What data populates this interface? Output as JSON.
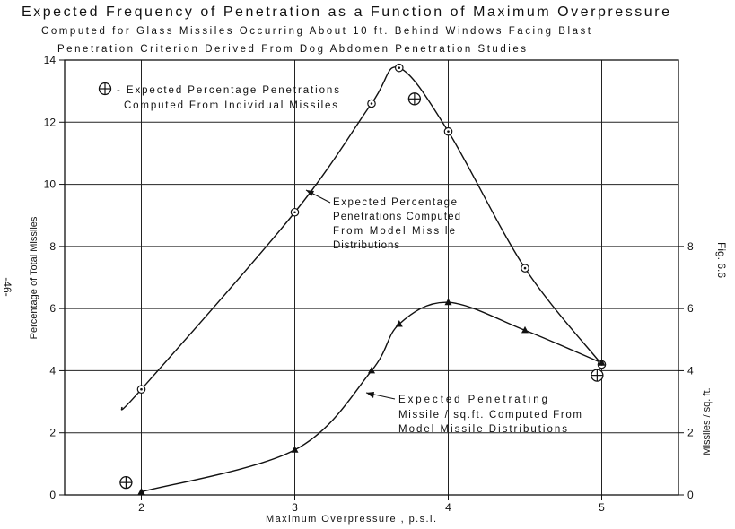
{
  "chart_data": {
    "type": "line",
    "title": "Expected Frequency of Penetration as a Function of Maximum Overpressure",
    "subtitle_lines": [
      "Computed for Glass Missiles Occurring About 10 ft. Behind Windows Facing Blast",
      "Penetration Criterion Derived From Dog Abdomen Penetration Studies"
    ],
    "xlabel": "Maximum Overpressure , p.s.i.",
    "ylabel": "Percentage of Total Missiles",
    "ylabel_right": "Missiles / sq. ft.",
    "x_ticks": [
      "2",
      "3",
      "4",
      "5"
    ],
    "y_ticks": [
      "0",
      "2",
      "4",
      "6",
      "8",
      "10",
      "12",
      "14"
    ],
    "y_right_ticks": [
      "0",
      "2",
      "4",
      "6",
      "8"
    ],
    "xlim": [
      1.5,
      5.5
    ],
    "ylim": [
      0,
      14
    ],
    "page_number": "-46-",
    "fig_label": "Fig. 6.6",
    "legend_text_1": "- Expected Percentage Penetrations",
    "legend_text_2": "Computed From Individual Missiles",
    "annotation_a_1": "Expected Percentage",
    "annotation_a_2": "Penetrations Computed",
    "annotation_a_3": "From Model Missile",
    "annotation_a_4": "Distributions",
    "annotation_b_1": "Expected Penetrating",
    "annotation_b_2": "Missile / sq.ft. Computed From",
    "annotation_b_3": "Model Missile Distributions",
    "series": [
      {
        "marker": "circle-dot",
        "points": [
          [
            2.0,
            3.4
          ],
          [
            3.0,
            9.1
          ],
          [
            3.5,
            12.6
          ],
          [
            3.68,
            13.75
          ],
          [
            4.0,
            11.7
          ],
          [
            4.5,
            7.3
          ],
          [
            5.0,
            4.2
          ]
        ]
      },
      {
        "marker": "triangle",
        "points": [
          [
            2.0,
            0.1
          ],
          [
            3.0,
            1.45
          ],
          [
            3.5,
            4.0
          ],
          [
            3.68,
            5.5
          ],
          [
            4.0,
            6.2
          ],
          [
            4.5,
            5.3
          ],
          [
            5.0,
            4.25
          ]
        ]
      },
      {
        "marker": "circle-plus",
        "points": [
          [
            1.9,
            0.4
          ],
          [
            3.78,
            12.75
          ],
          [
            4.97,
            3.85
          ]
        ]
      }
    ]
  }
}
